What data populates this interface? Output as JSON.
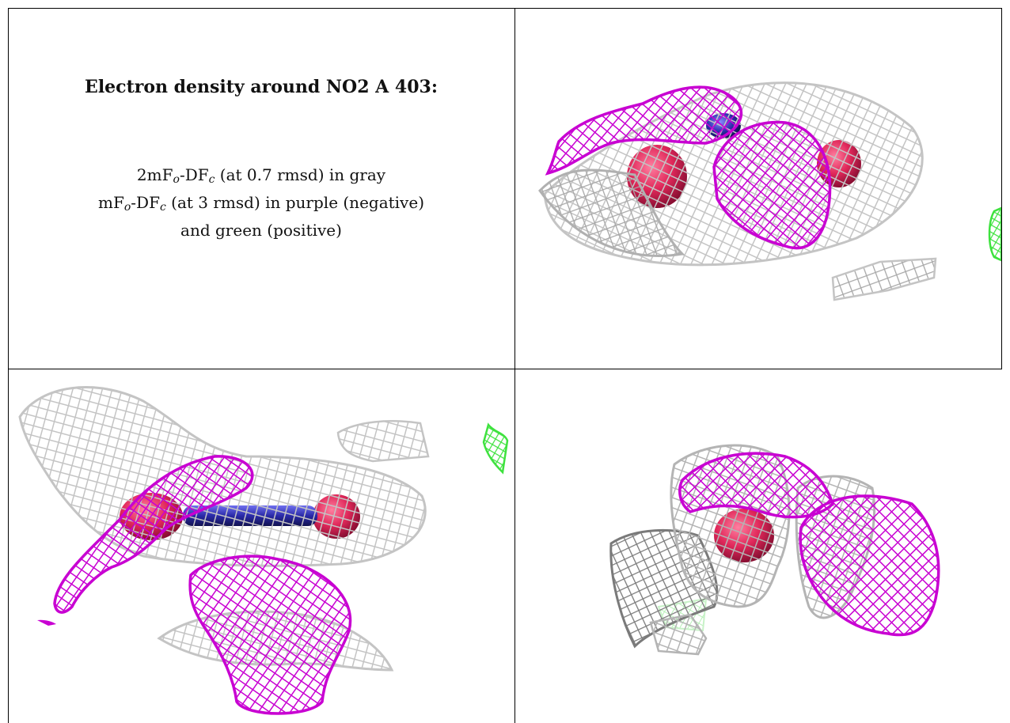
{
  "caption": {
    "title": "Electron density around NO2 A 403:",
    "line1_pre": "2mF",
    "line1_sub1": "o",
    "line1_mid": "-DF",
    "line1_sub2": "c",
    "line1_post": " (at 0.7 rmsd) in gray",
    "line2_pre": "mF",
    "line2_sub1": "o",
    "line2_mid": "-DF",
    "line2_sub2": "c",
    "line2_post": " (at 3 rmsd) in purple (negative)",
    "line3": "and green (positive)"
  },
  "colors": {
    "map_2fofc": "#c4c4c4",
    "map_fofc_negative": "#c800d2",
    "map_fofc_positive": "#3ee23e",
    "atom_oxygen": "#e0285a",
    "atom_nitrogen": "#2a2aa8"
  }
}
